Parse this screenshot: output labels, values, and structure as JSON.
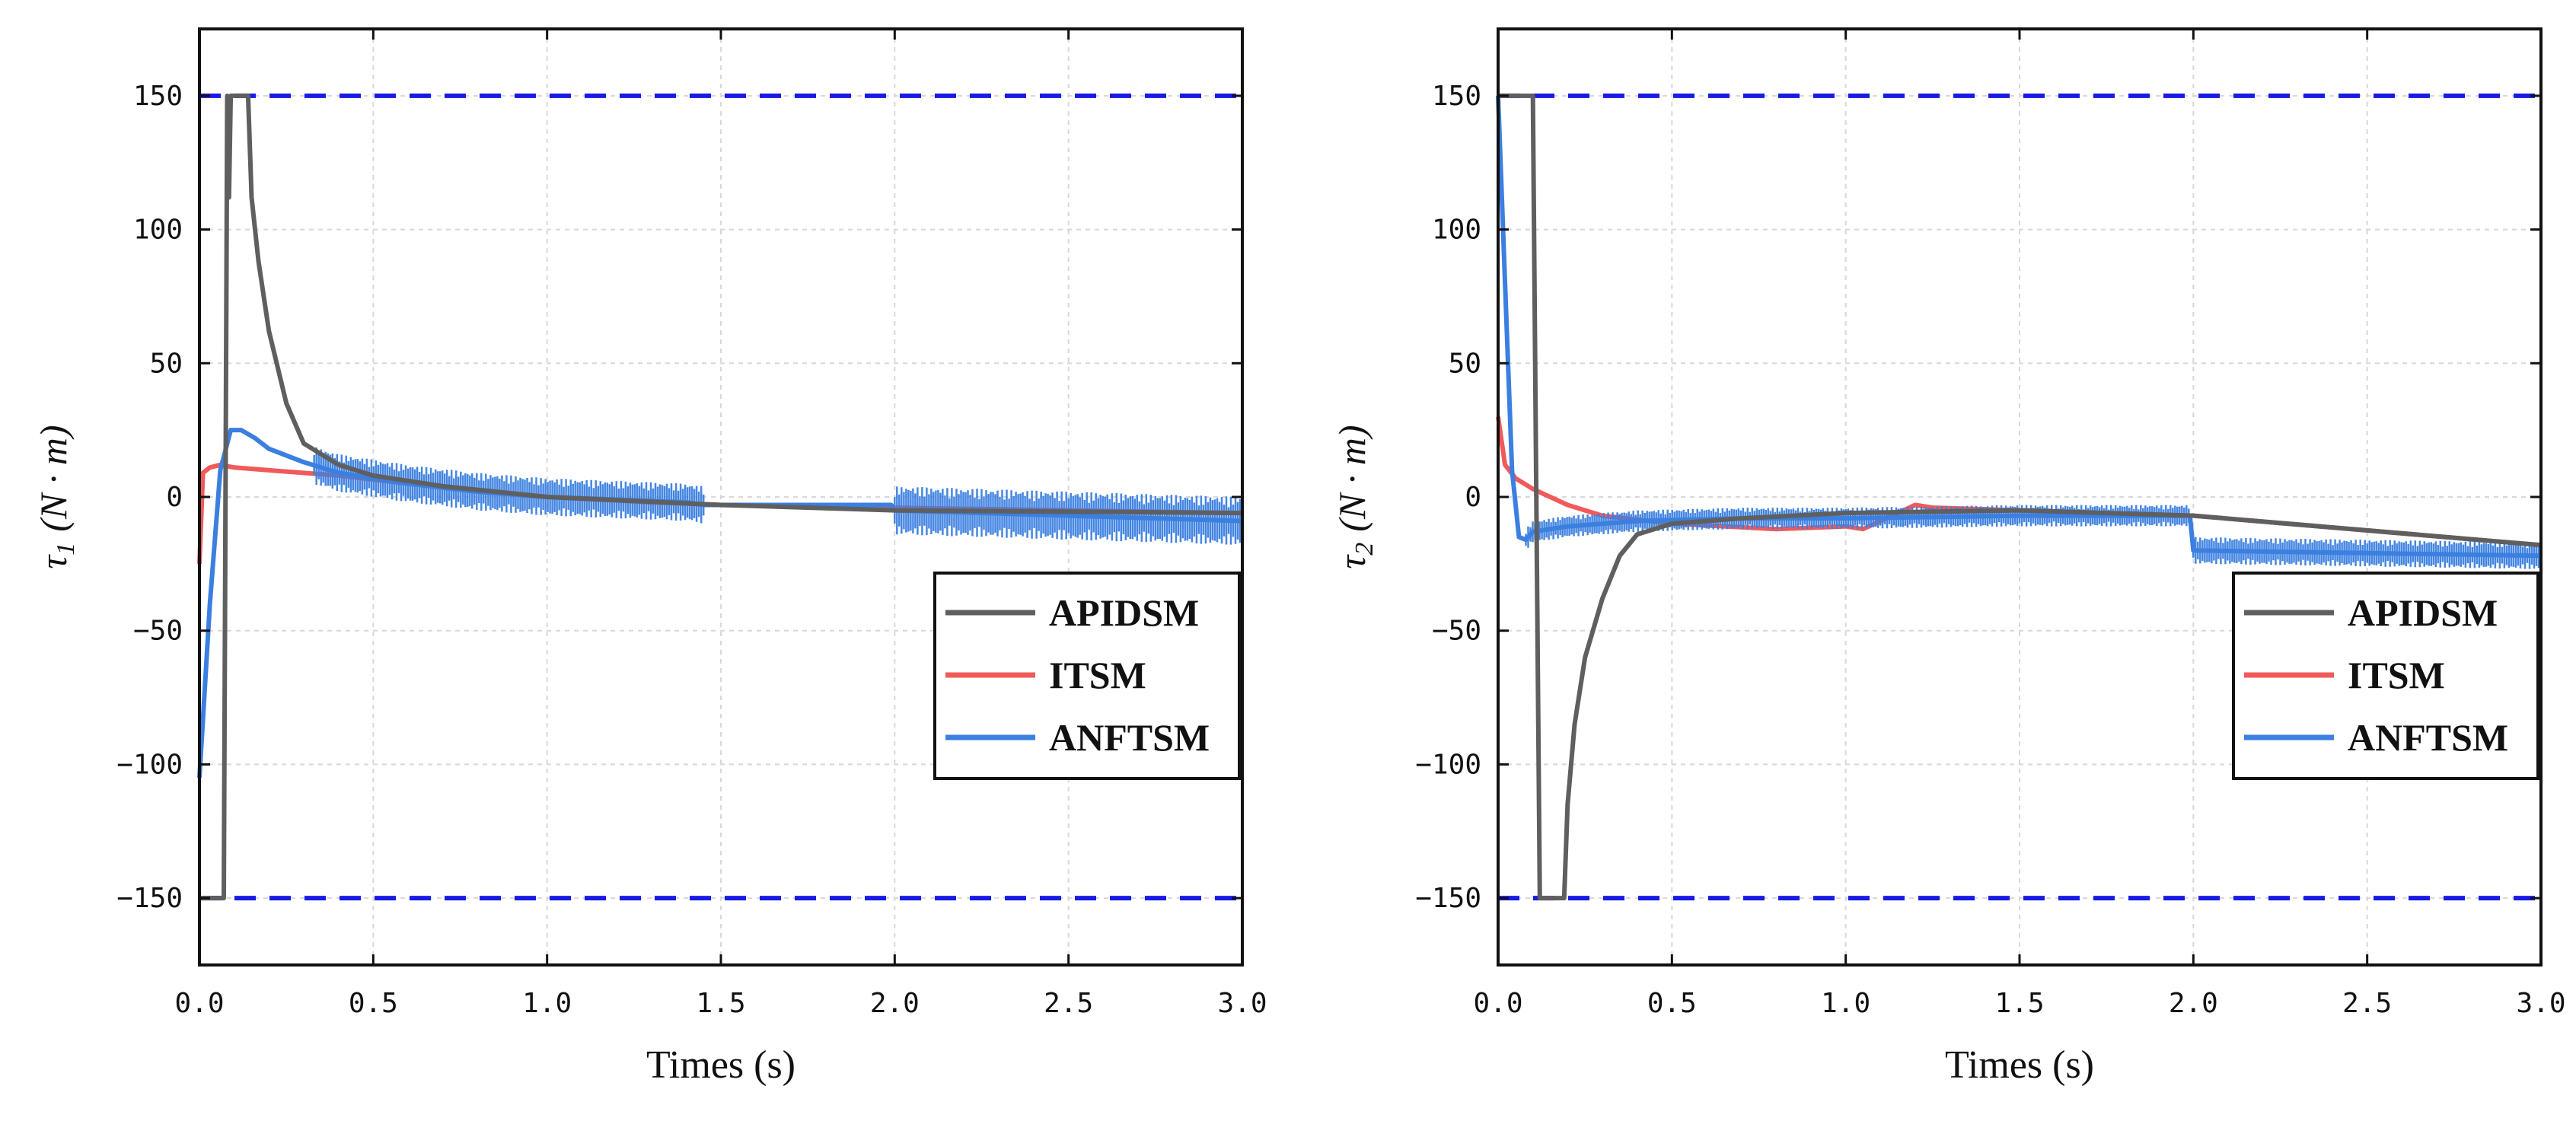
{
  "colors": {
    "APIDSM": "#5f5f5f",
    "ITSM": "#f05a5a",
    "ANFTSM": "#3b7fe0",
    "limit": "#1a1ae6",
    "grid": "#d8d8d8"
  },
  "chart_data": [
    {
      "type": "line",
      "xlabel": "Times (s)",
      "ylabel": "τ1 (N · m)",
      "ylabel_main": "τ",
      "ylabel_sub": "1",
      "ylabel_unit": "(N · m)",
      "xlim": [
        0,
        3
      ],
      "ylim": [
        -175,
        175
      ],
      "xticks": [
        0.0,
        0.5,
        1.0,
        1.5,
        2.0,
        2.5,
        3.0
      ],
      "xtick_labels": [
        "0.0",
        "0.5",
        "1.0",
        "1.5",
        "2.0",
        "2.5",
        "3.0"
      ],
      "yticks": [
        150,
        100,
        50,
        0,
        -50,
        -100,
        -150
      ],
      "ytick_labels": [
        "150",
        "100",
        "50",
        "0",
        "−50",
        "−100",
        "−150"
      ],
      "limits": [
        150,
        -150
      ],
      "legend": [
        "APIDSM",
        "ITSM",
        "ANFTSM"
      ],
      "legend_position": "lower-right",
      "series": [
        {
          "name": "APIDSM",
          "x": [
            0,
            0.07,
            0.08,
            0.085,
            0.09,
            0.095,
            0.1,
            0.14,
            0.15,
            0.17,
            0.2,
            0.25,
            0.3,
            0.4,
            0.5,
            0.7,
            1.0,
            1.5,
            2.0,
            3.0
          ],
          "y": [
            -150,
            -150,
            150,
            112,
            150,
            150,
            150,
            150,
            112,
            88,
            62,
            35,
            20,
            12,
            8,
            4,
            0,
            -3,
            -5,
            -6
          ]
        },
        {
          "name": "ITSM",
          "x": [
            0,
            0.01,
            0.03,
            0.06,
            0.1,
            0.2,
            0.4,
            0.6,
            0.8,
            1.0,
            1.3,
            1.5,
            2.0,
            3.0
          ],
          "y": [
            -25,
            9,
            11,
            12,
            11,
            10,
            8,
            5,
            2,
            0,
            -2,
            -3,
            -4,
            -6
          ],
          "band": null
        },
        {
          "name": "ANFTSM",
          "x": [
            0,
            0.03,
            0.06,
            0.09,
            0.12,
            0.16,
            0.2,
            0.3,
            0.4,
            0.6,
            0.8,
            1.0,
            1.2,
            1.4,
            1.45,
            1.5,
            1.8,
            1.99,
            2.0,
            2.5,
            3.0
          ],
          "y": [
            -105,
            -40,
            10,
            25,
            25,
            22,
            18,
            13,
            9,
            5,
            2,
            0,
            -1,
            -2,
            -3,
            -3,
            -3,
            -3,
            -5,
            -7,
            -9
          ],
          "band": [
            {
              "x": [
                0.33,
                1.45
              ],
              "half_width": 7
            },
            {
              "x": [
                2.0,
                3.0
              ],
              "half_width": 9
            }
          ]
        }
      ]
    },
    {
      "type": "line",
      "xlabel": "Times (s)",
      "ylabel": "τ2 (N · m)",
      "ylabel_main": "τ",
      "ylabel_sub": "2",
      "ylabel_unit": "(N · m)",
      "xlim": [
        0,
        3
      ],
      "ylim": [
        -175,
        175
      ],
      "xticks": [
        0.0,
        0.5,
        1.0,
        1.5,
        2.0,
        2.5,
        3.0
      ],
      "xtick_labels": [
        "0.0",
        "0.5",
        "1.0",
        "1.5",
        "2.0",
        "2.5",
        "3.0"
      ],
      "yticks": [
        150,
        100,
        50,
        0,
        -50,
        -100,
        -150
      ],
      "ytick_labels": [
        "150",
        "100",
        "50",
        "0",
        "−50",
        "−100",
        "−150"
      ],
      "limits": [
        150,
        -150
      ],
      "legend": [
        "APIDSM",
        "ITSM",
        "ANFTSM"
      ],
      "legend_position": "lower-right",
      "series": [
        {
          "name": "APIDSM",
          "x": [
            0,
            0.1,
            0.11,
            0.12,
            0.19,
            0.2,
            0.22,
            0.25,
            0.3,
            0.35,
            0.4,
            0.5,
            0.7,
            1.0,
            1.5,
            2.0,
            3.0
          ],
          "y": [
            150,
            150,
            0,
            -150,
            -150,
            -115,
            -85,
            -60,
            -38,
            -22,
            -14,
            -10,
            -8,
            -6,
            -5,
            -7,
            -18
          ],
          "band": null
        },
        {
          "name": "ITSM",
          "x": [
            0,
            0.02,
            0.05,
            0.1,
            0.2,
            0.3,
            0.5,
            0.8,
            1.0,
            1.05,
            1.1,
            1.2,
            1.25,
            1.5,
            2.0,
            3.0
          ],
          "y": [
            30,
            12,
            7,
            3,
            -3,
            -7,
            -10,
            -12,
            -11,
            -12,
            -9,
            -3,
            -4,
            -5,
            -7,
            -18
          ],
          "band": null
        },
        {
          "name": "ANFTSM",
          "x": [
            0,
            0.02,
            0.04,
            0.06,
            0.08,
            0.1,
            0.2,
            0.4,
            0.7,
            1.0,
            1.5,
            1.99,
            2.0,
            2.5,
            3.0
          ],
          "y": [
            150,
            80,
            10,
            -15,
            -16,
            -13,
            -11,
            -9,
            -8,
            -8,
            -7,
            -7,
            -20,
            -21,
            -22
          ],
          "band": [
            {
              "x": [
                0.08,
                2.0
              ],
              "half_width": 4
            },
            {
              "x": [
                2.0,
                3.0
              ],
              "half_width": 5
            }
          ]
        }
      ]
    }
  ]
}
